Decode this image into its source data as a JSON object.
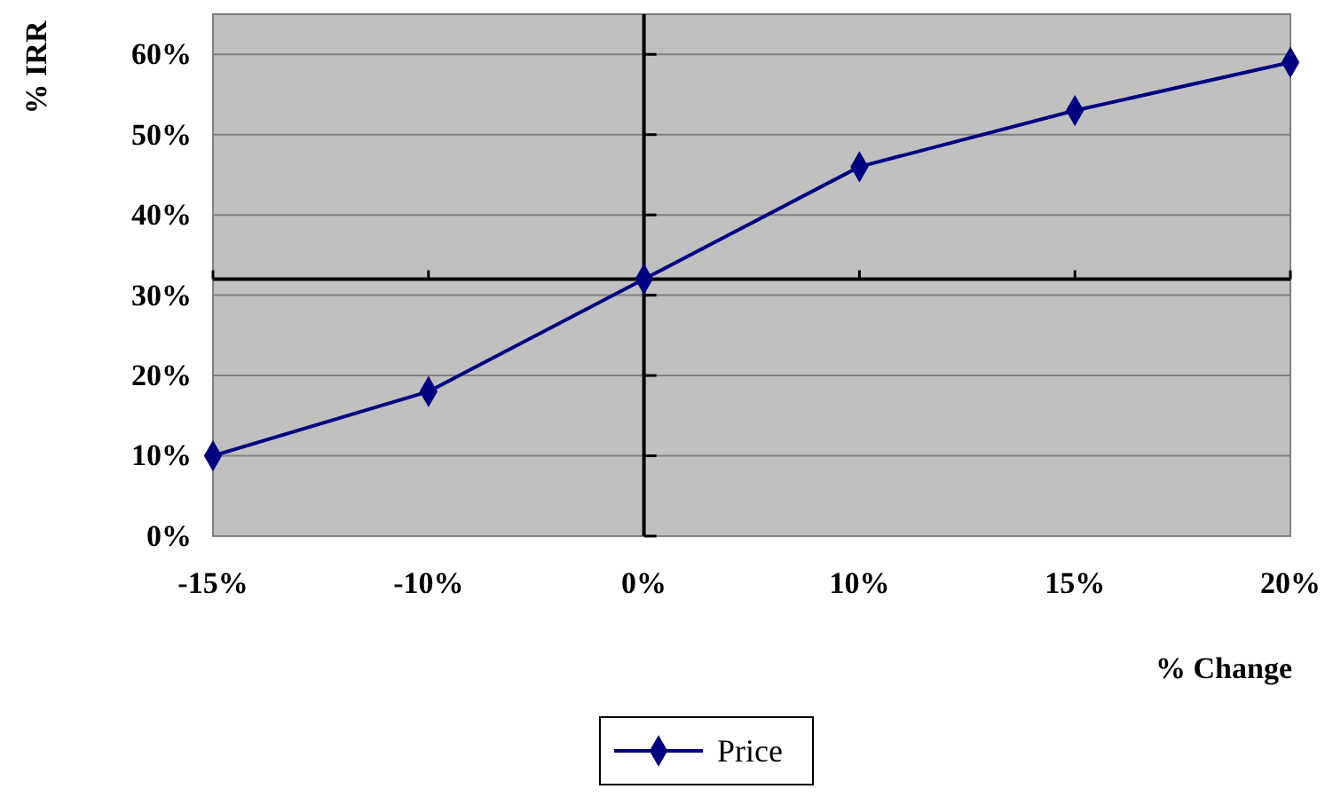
{
  "chart_data": {
    "type": "line",
    "xlabel": "% Change",
    "ylabel": "% IRR",
    "categories": [
      "-15%",
      "-10%",
      "0%",
      "10%",
      "15%",
      "20%"
    ],
    "series": [
      {
        "name": "Price",
        "color": "#000080",
        "values": [
          10,
          18,
          32,
          46,
          53,
          59
        ]
      }
    ],
    "ylim": [
      0,
      65
    ],
    "yticks": [
      {
        "value": 0,
        "label": "0%"
      },
      {
        "value": 10,
        "label": "10%"
      },
      {
        "value": 20,
        "label": "20%"
      },
      {
        "value": 30,
        "label": "30%"
      },
      {
        "value": 40,
        "label": "40%"
      },
      {
        "value": 50,
        "label": "50%"
      },
      {
        "value": 60,
        "label": "60%"
      }
    ],
    "grid": "y",
    "legend": "bottom",
    "marker": "diamond",
    "line_style": "solid",
    "ref_lines": [
      {
        "axis": "y",
        "value": 32,
        "color": "#000000"
      },
      {
        "axis": "x",
        "value": "0%",
        "color": "#000000"
      }
    ]
  }
}
